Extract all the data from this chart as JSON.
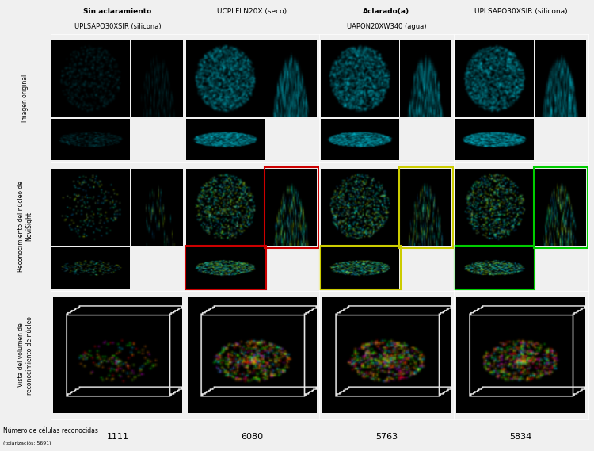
{
  "col_headers": [
    [
      "Sin aclaramiento",
      "UPLSAPO30XSIR (silicona)"
    ],
    [
      "UCPLFLN20X (seco)",
      ""
    ],
    [
      "Aclarado(a)",
      "UAPON20XW340 (agua)"
    ],
    [
      "UPLSAPO30XSIR (silicona)",
      ""
    ]
  ],
  "col_header_bold": [
    "Sin aclaramiento",
    "Aclarado(a)"
  ],
  "row_labels": [
    "Imagen original",
    "Reconocimiento del núcleo de\nNoviSight",
    "Vista del volumen de\nreconocimiento de núcleo"
  ],
  "cell_counts": [
    "1111",
    "6080",
    "5763",
    "5834"
  ],
  "cell_count_label": "Número de células reconocidas",
  "cell_count_sublabel": "(tpiarizaciós: 5691)",
  "background_color": "#f0f0f0",
  "cell_bg": "#000000",
  "header_bg": "#e8e8e8",
  "rect_colors": [
    "none",
    "#cc0000",
    "#cccc00",
    "#00cc00"
  ],
  "grid_rows": 3,
  "grid_cols": 4,
  "fig_width": 7.5,
  "fig_height": 5.69
}
